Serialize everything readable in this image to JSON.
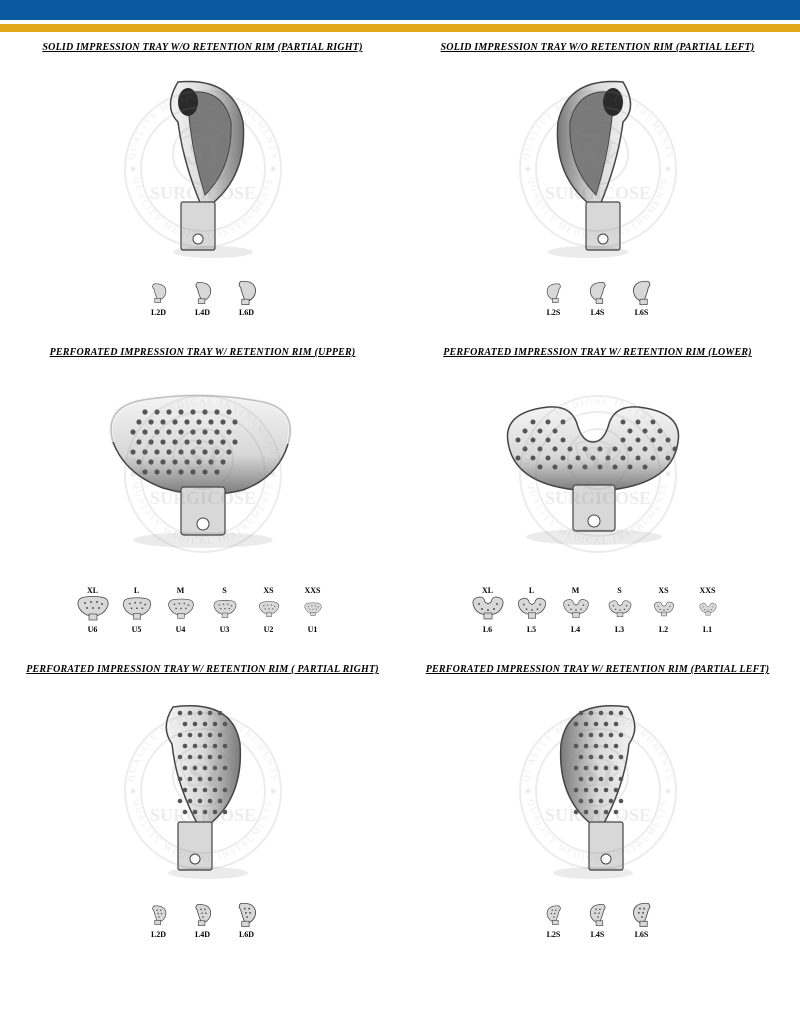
{
  "page": {
    "top_bar_color": "#0a5aa0",
    "accent_bar_color": "#e0a817",
    "watermark_brand": "SURGICOSE",
    "watermark_text": "QUALITY MEDICAL INSTRUMENTS",
    "watermark_color": "#888888"
  },
  "panels": [
    {
      "title": "SOLID IMPRESSION TRAY W/O RETENTION RIM (PARTIAL RIGHT)",
      "type": "solid",
      "sizes": [
        {
          "code": "L2D"
        },
        {
          "code": "L4D"
        },
        {
          "code": "L6D"
        }
      ]
    },
    {
      "title": "SOLID IMPRESSION TRAY W/O RETENTION RIM (PARTIAL LEFT)",
      "type": "solid",
      "sizes": [
        {
          "code": "L2S"
        },
        {
          "code": "L4S"
        },
        {
          "code": "L6S"
        }
      ]
    },
    {
      "title": "PERFORATED IMPRESSION TRAY W/ RETENTION RIM (UPPER)",
      "type": "perforated-upper",
      "sizes": [
        {
          "top": "XL",
          "code": "U6"
        },
        {
          "top": "L",
          "code": "U5"
        },
        {
          "top": "M",
          "code": "U4"
        },
        {
          "top": "S",
          "code": "U3"
        },
        {
          "top": "XS",
          "code": "U2"
        },
        {
          "top": "XXS",
          "code": "U1"
        }
      ]
    },
    {
      "title": "PERFORATED IMPRESSION TRAY W/ RETENTION RIM (LOWER)",
      "type": "perforated-lower",
      "sizes": [
        {
          "top": "XL",
          "code": "L6"
        },
        {
          "top": "L",
          "code": "L5"
        },
        {
          "top": "M",
          "code": "L4"
        },
        {
          "top": "S",
          "code": "L3"
        },
        {
          "top": "XS",
          "code": "L2"
        },
        {
          "top": "XXS",
          "code": "L1"
        }
      ]
    },
    {
      "title": "PERFORATED IMPRESSION TRAY W/ RETENTION RIM ( PARTIAL RIGHT)",
      "type": "perforated-partial",
      "sizes": [
        {
          "code": "L2D"
        },
        {
          "code": "L4D"
        },
        {
          "code": "L6D"
        }
      ]
    },
    {
      "title": "PERFORATED IMPRESSION TRAY W/ RETENTION RIM (PARTIAL LEFT)",
      "type": "perforated-partial",
      "sizes": [
        {
          "code": "L2S"
        },
        {
          "code": "L4S"
        },
        {
          "code": "L6S"
        }
      ]
    }
  ],
  "render": {
    "tray_fill": "#d8d8d8",
    "tray_stroke": "#444444",
    "tray_highlight": "#f4f4f4",
    "tray_shadow": "#7a7a7a",
    "perf_hole": "#555555"
  }
}
